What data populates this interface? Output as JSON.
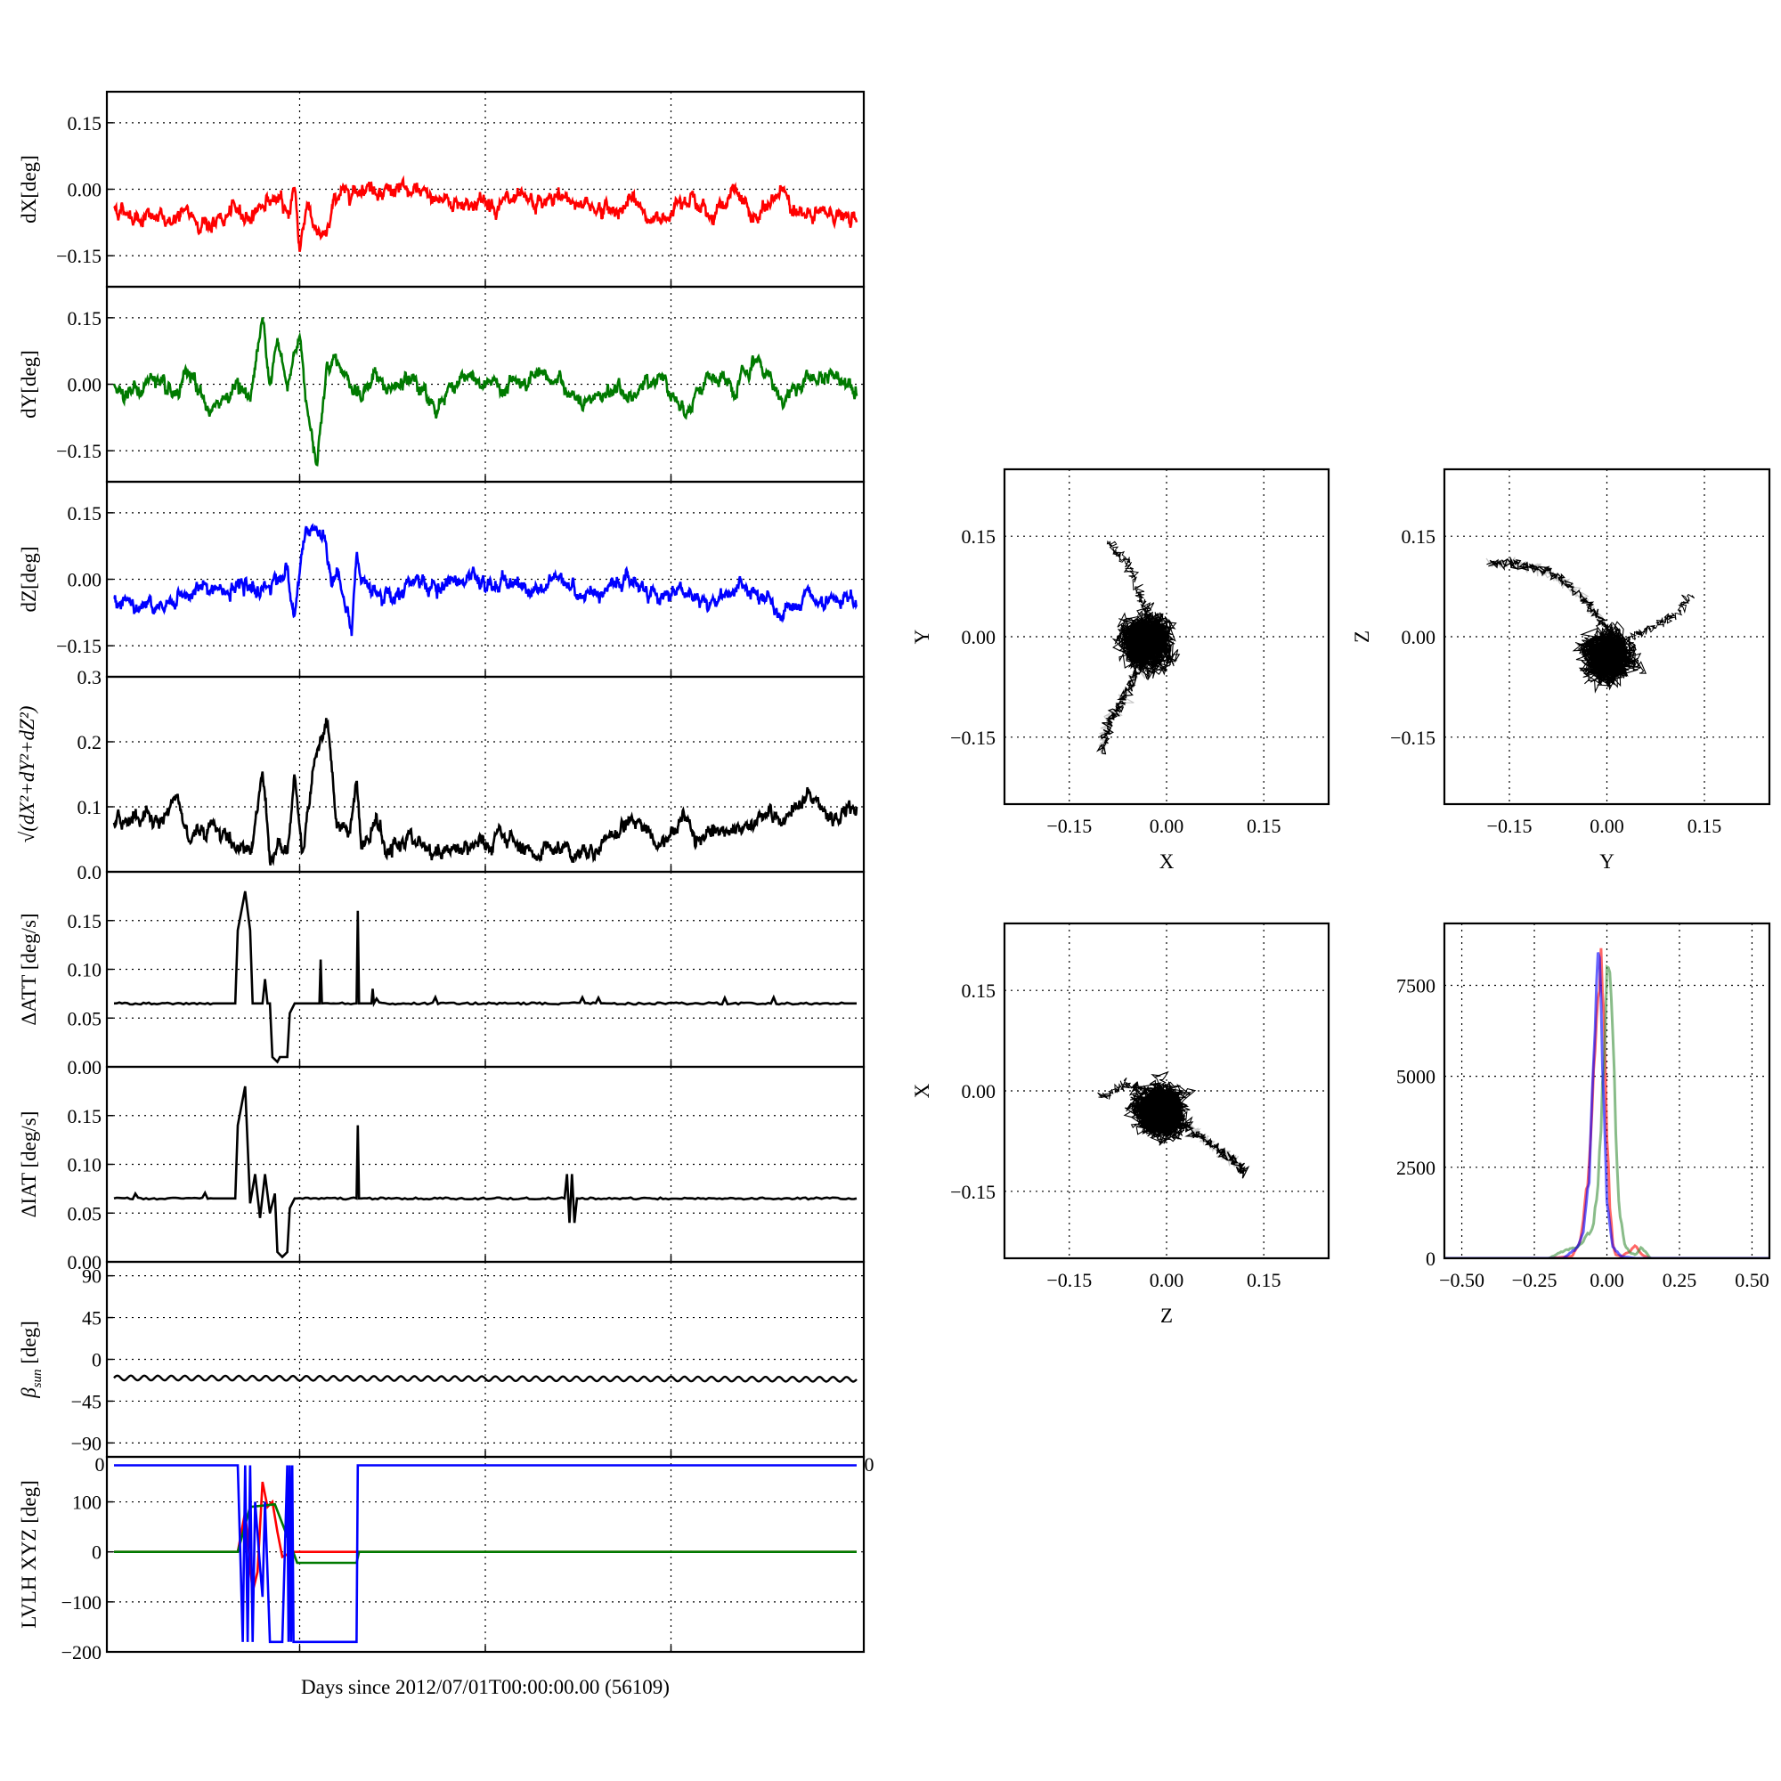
{
  "chart_data": [
    {
      "type": "line",
      "id": "dx",
      "ylabel": "dX[deg]",
      "ylim": [
        -0.22,
        0.22
      ],
      "yticks": [
        0.15,
        0.0,
        -0.15
      ],
      "ytick_labels": [
        "0.15",
        "0.00",
        "−0.15"
      ],
      "xlim": [
        0,
        30
      ],
      "xticks": [
        7.5,
        15,
        22.5
      ],
      "series": [
        {
          "color": "#ff0000",
          "x": [
            0,
            1,
            2,
            3,
            4,
            5,
            5.5,
            6,
            6.5,
            7,
            7.3,
            7.5,
            7.8,
            8.2,
            8.5,
            9,
            10,
            11,
            12,
            13,
            14,
            15,
            16,
            17,
            18,
            19,
            20,
            21,
            22,
            23,
            24,
            25,
            26,
            27,
            28,
            29,
            30
          ],
          "y": [
            -0.04,
            -0.06,
            -0.07,
            -0.06,
            -0.08,
            -0.05,
            -0.06,
            -0.03,
            -0.02,
            -0.06,
            0.01,
            -0.14,
            -0.02,
            -0.1,
            -0.12,
            -0.01,
            0.01,
            0.0,
            -0.01,
            -0.02,
            -0.03,
            -0.03,
            -0.03,
            -0.04,
            -0.02,
            -0.03,
            -0.05,
            -0.03,
            -0.08,
            0.0,
            -0.06,
            -0.01,
            -0.07,
            0.0,
            -0.07,
            -0.05,
            -0.08
          ]
        }
      ]
    },
    {
      "type": "line",
      "id": "dy",
      "ylabel": "dY[deg]",
      "ylim": [
        -0.22,
        0.22
      ],
      "yticks": [
        0.15,
        0.0,
        -0.15
      ],
      "ytick_labels": [
        "0.15",
        "0.00",
        "−0.15"
      ],
      "xlim": [
        0,
        30
      ],
      "xticks": [
        7.5,
        15,
        22.5
      ],
      "series": [
        {
          "color": "#007a00",
          "x": [
            0,
            1,
            1.5,
            2,
            2.5,
            3,
            4,
            4.5,
            5,
            5.5,
            6,
            6.3,
            6.6,
            7,
            7.5,
            7.8,
            8.2,
            8.6,
            9,
            10,
            10.5,
            11,
            12,
            13,
            14,
            15,
            16,
            17,
            18,
            19,
            20,
            21,
            22,
            23,
            24,
            25,
            26,
            27,
            28,
            29,
            30
          ],
          "y": [
            0.0,
            -0.02,
            0.02,
            -0.02,
            -0.04,
            0.02,
            -0.07,
            -0.02,
            0.0,
            -0.03,
            0.14,
            0.03,
            0.09,
            -0.01,
            0.12,
            -0.04,
            -0.18,
            0.05,
            0.06,
            -0.04,
            0.03,
            -0.02,
            0.01,
            -0.05,
            0.02,
            -0.01,
            0.0,
            0.0,
            0.01,
            -0.06,
            -0.01,
            -0.03,
            0.03,
            -0.06,
            0.02,
            -0.02,
            0.05,
            -0.03,
            0.01,
            0.02,
            0.0
          ]
        }
      ]
    },
    {
      "type": "line",
      "id": "dz",
      "ylabel": "dZ[deg]",
      "ylim": [
        -0.22,
        0.22
      ],
      "yticks": [
        0.15,
        0.0,
        -0.15
      ],
      "ytick_labels": [
        "0.15",
        "0.00",
        "−0.15"
      ],
      "xlim": [
        0,
        30
      ],
      "xticks": [
        7.5,
        15,
        22.5
      ],
      "series": [
        {
          "color": "#0000ff",
          "x": [
            0,
            1,
            2,
            3,
            4,
            5,
            6,
            7,
            7.3,
            7.6,
            8,
            8.5,
            8.8,
            9,
            9.6,
            9.8,
            10,
            11,
            12,
            13,
            14,
            15,
            16,
            17,
            18,
            19,
            20,
            21,
            22,
            23,
            24,
            25,
            26,
            27,
            28,
            29,
            30
          ],
          "y": [
            -0.04,
            -0.05,
            -0.07,
            -0.03,
            -0.02,
            -0.03,
            -0.02,
            0.02,
            -0.09,
            0.07,
            0.11,
            0.1,
            -0.02,
            0.02,
            -0.12,
            0.06,
            -0.02,
            -0.03,
            -0.01,
            -0.02,
            0.0,
            -0.02,
            0.0,
            -0.03,
            0.01,
            -0.04,
            -0.01,
            0.0,
            -0.04,
            -0.02,
            -0.06,
            -0.02,
            -0.04,
            -0.08,
            -0.05,
            -0.06,
            -0.05
          ]
        }
      ]
    },
    {
      "type": "line",
      "id": "mag",
      "ylabel": "√(dX²+dY²+dZ²)",
      "ylim": [
        0,
        0.3
      ],
      "yticks": [
        0.0,
        0.1,
        0.2,
        0.3
      ],
      "ytick_labels": [
        "0.0",
        "0.1",
        "0.2",
        "0.3"
      ],
      "xlim": [
        0,
        30
      ],
      "xticks": [
        7.5,
        15,
        22.5
      ],
      "series": [
        {
          "color": "#000000",
          "x": [
            0,
            1,
            2,
            2.5,
            3,
            4,
            5,
            5.5,
            6,
            6.3,
            6.6,
            7,
            7.3,
            7.6,
            8,
            8.4,
            8.6,
            9,
            9.5,
            9.8,
            10,
            10.6,
            11,
            12,
            13,
            14,
            15,
            16,
            17,
            18,
            19,
            20,
            21,
            22,
            23,
            24,
            25,
            26,
            27,
            28,
            29,
            30
          ],
          "y": [
            0.07,
            0.09,
            0.08,
            0.12,
            0.06,
            0.07,
            0.04,
            0.03,
            0.16,
            0.02,
            0.05,
            0.02,
            0.15,
            0.03,
            0.15,
            0.22,
            0.24,
            0.07,
            0.06,
            0.14,
            0.03,
            0.08,
            0.03,
            0.05,
            0.03,
            0.04,
            0.04,
            0.05,
            0.03,
            0.04,
            0.03,
            0.05,
            0.09,
            0.04,
            0.08,
            0.05,
            0.06,
            0.09,
            0.07,
            0.11,
            0.08,
            0.1
          ]
        }
      ]
    },
    {
      "type": "line",
      "id": "datt",
      "ylabel": "ΔATT [deg/s]",
      "ylim": [
        0,
        0.2
      ],
      "yticks": [
        0.0,
        0.05,
        0.1,
        0.15
      ],
      "ytick_labels": [
        "0.00",
        "0.05",
        "0.10",
        "0.15"
      ],
      "xlim": [
        0,
        30
      ],
      "xticks": [
        7.5,
        15,
        22.5
      ],
      "series": [
        {
          "color": "#000000",
          "x": [
            0,
            4,
            4.9,
            5.0,
            5.3,
            5.5,
            5.6,
            6.0,
            6.1,
            6.2,
            6.3,
            6.4,
            6.6,
            6.7,
            6.8,
            7.0,
            7.1,
            7.3,
            7.4,
            8.3,
            8.35,
            8.4,
            9.8,
            9.85,
            9.9,
            10.0,
            10.4,
            10.45,
            10.5,
            20,
            25,
            29.5,
            30
          ],
          "y": [
            0.065,
            0.065,
            0.065,
            0.14,
            0.18,
            0.14,
            0.065,
            0.065,
            0.09,
            0.065,
            0.065,
            0.01,
            0.005,
            0.01,
            0.01,
            0.01,
            0.055,
            0.065,
            0.065,
            0.065,
            0.11,
            0.065,
            0.065,
            0.16,
            0.065,
            0.065,
            0.065,
            0.08,
            0.065,
            0.065,
            0.065,
            0.065,
            0.065
          ]
        }
      ]
    },
    {
      "type": "line",
      "id": "diat",
      "ylabel": "ΔIAT [deg/s]",
      "ylim": [
        0,
        0.2
      ],
      "yticks": [
        0.0,
        0.05,
        0.1,
        0.15
      ],
      "ytick_labels": [
        "0.00",
        "0.05",
        "0.10",
        "0.15"
      ],
      "xlim": [
        0,
        30
      ],
      "xticks": [
        7.5,
        15,
        22.5
      ],
      "series": [
        {
          "color": "#000000",
          "x": [
            0,
            4,
            4.9,
            5.0,
            5.3,
            5.5,
            5.7,
            5.9,
            6.1,
            6.3,
            6.5,
            6.6,
            6.8,
            7.0,
            7.1,
            7.3,
            7.4,
            9.8,
            9.85,
            9.9,
            10.0,
            18.2,
            18.3,
            18.4,
            18.5,
            18.6,
            18.7,
            30
          ],
          "y": [
            0.065,
            0.065,
            0.065,
            0.14,
            0.18,
            0.06,
            0.09,
            0.045,
            0.09,
            0.05,
            0.07,
            0.01,
            0.005,
            0.01,
            0.055,
            0.065,
            0.065,
            0.065,
            0.14,
            0.065,
            0.065,
            0.065,
            0.09,
            0.04,
            0.09,
            0.04,
            0.065,
            0.065
          ]
        }
      ]
    },
    {
      "type": "line",
      "id": "beta",
      "ylabel": "β_sun [deg]",
      "ylabel_base": "β",
      "ylabel_sub": "sun",
      "ylabel_tail": " [deg]",
      "ylim": [
        -105,
        105
      ],
      "yticks": [
        90,
        45,
        0,
        -45,
        -90
      ],
      "ytick_labels": [
        "90",
        "45",
        "0",
        "−45",
        "−90"
      ],
      "xlim": [
        0,
        30
      ],
      "xticks": [
        7.5,
        15,
        22.5
      ],
      "edge_tick_labels": [
        "0",
        "0"
      ],
      "series": [
        {
          "color": "#000000",
          "wave": {
            "mean": -20,
            "amp": 2.5,
            "periods": 55
          },
          "x": [
            0,
            30
          ],
          "y": [
            -20,
            -20
          ]
        }
      ]
    },
    {
      "type": "line",
      "id": "lvlh",
      "ylabel": "LVLH XYZ [deg]",
      "xlabel": "Days since 2012/07/01T00:00:00.00 (56109)",
      "ylim": [
        -200,
        190
      ],
      "yticks": [
        100,
        0,
        -100,
        -200
      ],
      "ytick_labels": [
        "100",
        "0",
        "−100",
        "−200"
      ],
      "xlim": [
        0,
        30
      ],
      "xticks": [
        7.5,
        15,
        22.5
      ],
      "series": [
        {
          "color": "#ff0000",
          "x": [
            0,
            5,
            5.3,
            5.6,
            5.8,
            6.0,
            6.2,
            6.4,
            6.6,
            6.8,
            7.2,
            7.3,
            30
          ],
          "y": [
            0,
            0,
            80,
            -80,
            -40,
            140,
            90,
            100,
            40,
            -10,
            0,
            0,
            0
          ]
        },
        {
          "color": "#007a00",
          "x": [
            0,
            5,
            5.5,
            6.5,
            7.2,
            7.4,
            9.8,
            9.9,
            10.2,
            30
          ],
          "y": [
            0,
            0,
            90,
            95,
            5,
            -22,
            -22,
            0,
            0,
            0
          ]
        },
        {
          "color": "#0000ff",
          "x": [
            0,
            5,
            5.1,
            5.2,
            5.3,
            5.4,
            5.5,
            5.6,
            5.7,
            5.9,
            6.0,
            6.1,
            6.3,
            6.5,
            6.6,
            6.8,
            7.0,
            7.05,
            7.1,
            7.15,
            7.2,
            7.25,
            7.3,
            9.8,
            9.85,
            30
          ],
          "y": [
            173,
            173,
            0,
            -180,
            173,
            -180,
            173,
            -180,
            100,
            -30,
            -90,
            100,
            -180,
            -180,
            -180,
            -180,
            173,
            -180,
            173,
            -180,
            173,
            -180,
            -180,
            -180,
            173,
            173
          ]
        }
      ]
    },
    {
      "type": "scatter",
      "id": "xy",
      "xlabel": "X",
      "ylabel": "Y",
      "xlim": [
        -0.25,
        0.25
      ],
      "ylim": [
        -0.25,
        0.25
      ],
      "ticks": [
        -0.15,
        0.0,
        0.15
      ],
      "tick_labels": [
        "−0.15",
        "0.00",
        "0.15"
      ],
      "cloud": {
        "cx": -0.03,
        "cy": -0.01,
        "sx": 0.022,
        "sy": 0.028
      },
      "trail": [
        [
          -0.03,
          -0.03
        ],
        [
          -0.05,
          -0.06
        ],
        [
          -0.07,
          -0.1
        ],
        [
          -0.09,
          -0.13
        ],
        [
          -0.1,
          -0.17
        ]
      ],
      "trail2": [
        [
          -0.02,
          0.02
        ],
        [
          -0.04,
          0.06
        ],
        [
          -0.06,
          0.11
        ],
        [
          -0.09,
          0.14
        ]
      ]
    },
    {
      "type": "scatter",
      "id": "yz",
      "xlabel": "Y",
      "ylabel": "Z",
      "xlim": [
        -0.25,
        0.25
      ],
      "ylim": [
        -0.25,
        0.25
      ],
      "ticks": [
        -0.15,
        0.0,
        0.15
      ],
      "tick_labels": [
        "−0.15",
        "0.00",
        "0.15"
      ],
      "cloud": {
        "cx": 0.0,
        "cy": -0.03,
        "sx": 0.025,
        "sy": 0.022
      },
      "trail": [
        [
          0.01,
          0.0
        ],
        [
          -0.02,
          0.04
        ],
        [
          -0.06,
          0.08
        ],
        [
          -0.1,
          0.1
        ],
        [
          -0.14,
          0.11
        ],
        [
          -0.18,
          0.11
        ]
      ],
      "trail2": [
        [
          0.02,
          -0.01
        ],
        [
          0.06,
          0.01
        ],
        [
          0.1,
          0.03
        ],
        [
          0.13,
          0.06
        ]
      ]
    },
    {
      "type": "scatter",
      "id": "zx",
      "xlabel": "Z",
      "ylabel": "X",
      "xlim": [
        -0.25,
        0.25
      ],
      "ylim": [
        -0.25,
        0.25
      ],
      "ticks": [
        -0.15,
        0.0,
        0.15
      ],
      "tick_labels": [
        "−0.15",
        "0.00",
        "0.15"
      ],
      "cloud": {
        "cx": -0.01,
        "cy": -0.03,
        "sx": 0.028,
        "sy": 0.02
      },
      "trail": [
        [
          0.0,
          -0.04
        ],
        [
          0.04,
          -0.06
        ],
        [
          0.07,
          -0.08
        ],
        [
          0.1,
          -0.1
        ],
        [
          0.12,
          -0.12
        ]
      ],
      "trail2": [
        [
          -0.03,
          0.0
        ],
        [
          -0.06,
          0.01
        ],
        [
          -0.1,
          -0.01
        ]
      ]
    },
    {
      "type": "histogram",
      "id": "hist",
      "xlim": [
        -0.56,
        0.56
      ],
      "ylim": [
        0,
        9200
      ],
      "xticks": [
        -0.5,
        -0.25,
        0.0,
        0.25,
        0.5
      ],
      "xtick_labels": [
        "−0.50",
        "−0.25",
        "0.00",
        "0.25",
        "0.50"
      ],
      "yticks": [
        0,
        2500,
        5000,
        7500
      ],
      "ytick_labels": [
        "0",
        "2500",
        "5000",
        "7500"
      ],
      "series": [
        {
          "color": "#ff0000",
          "x": [
            -0.5,
            -0.2,
            -0.12,
            -0.09,
            -0.06,
            -0.04,
            -0.03,
            -0.02,
            -0.01,
            0.0,
            0.01,
            0.02,
            0.03,
            0.05,
            0.08,
            0.1,
            0.12,
            0.15,
            0.5
          ],
          "y": [
            0,
            0,
            50,
            500,
            2500,
            6000,
            7500,
            8000,
            6500,
            3500,
            1500,
            400,
            100,
            50,
            200,
            350,
            100,
            0,
            0
          ]
        },
        {
          "color": "#3a8f3a",
          "x": [
            -0.5,
            -0.2,
            -0.15,
            -0.1,
            -0.05,
            -0.03,
            -0.01,
            0.0,
            0.01,
            0.02,
            0.03,
            0.04,
            0.06,
            0.08,
            0.1,
            0.12,
            0.15,
            0.5
          ],
          "y": [
            0,
            0,
            200,
            300,
            800,
            2000,
            5500,
            8200,
            8300,
            6500,
            3500,
            1500,
            400,
            150,
            100,
            300,
            0,
            0
          ]
        },
        {
          "color": "#0000ff",
          "x": [
            -0.5,
            -0.15,
            -0.1,
            -0.08,
            -0.06,
            -0.05,
            -0.04,
            -0.03,
            -0.02,
            -0.01,
            0.0,
            0.02,
            0.05,
            0.1,
            0.5
          ],
          "y": [
            0,
            0,
            300,
            800,
            2200,
            4500,
            7000,
            9000,
            7200,
            4000,
            1500,
            300,
            50,
            0,
            0
          ]
        }
      ]
    }
  ]
}
